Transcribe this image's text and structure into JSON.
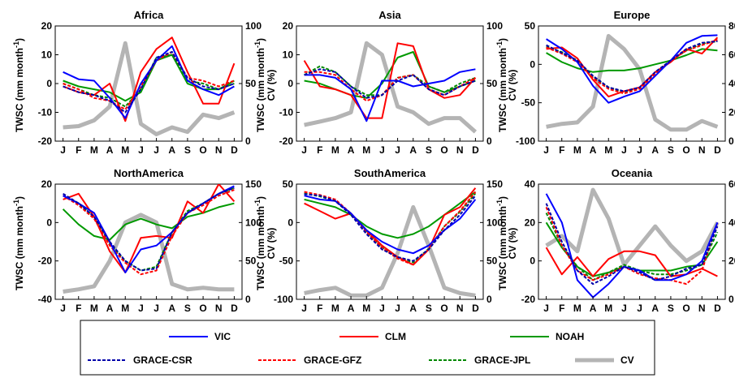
{
  "chart_data": {
    "type": "line",
    "x": [
      "J",
      "F",
      "M",
      "A",
      "M",
      "J",
      "J",
      "A",
      "S",
      "O",
      "N",
      "D"
    ],
    "xlabel": "",
    "ylabel_left": "TWSC (mm month-1)",
    "ylabel_right": "CV (%)",
    "series_styles": [
      {
        "name": "VIC",
        "color": "#0000ff",
        "dash": false,
        "width": 2
      },
      {
        "name": "CLM",
        "color": "#ff0000",
        "dash": false,
        "width": 2
      },
      {
        "name": "NOAH",
        "color": "#009900",
        "dash": false,
        "width": 2
      },
      {
        "name": "GRACE-CSR",
        "color": "#0000aa",
        "dash": true,
        "width": 2
      },
      {
        "name": "GRACE-GFZ",
        "color": "#ff0000",
        "dash": true,
        "width": 2
      },
      {
        "name": "GRACE-JPL",
        "color": "#008800",
        "dash": true,
        "width": 2
      },
      {
        "name": "CV",
        "color": "#b4b4b4",
        "dash": false,
        "width": 5,
        "axis": "right"
      }
    ],
    "panels": [
      {
        "title": "Africa",
        "ylim": [
          -20,
          20
        ],
        "yticks": [
          -20,
          -10,
          0,
          10,
          20
        ],
        "y2lim": [
          0,
          100
        ],
        "y2ticks": [
          0,
          50,
          100
        ],
        "series": [
          {
            "name": "VIC",
            "values": [
              4,
              1.5,
              1,
              -5,
              -12,
              0,
              8,
              13,
              1,
              -2,
              -4,
              -1
            ]
          },
          {
            "name": "CLM",
            "values": [
              -1,
              -3,
              -4,
              0,
              -13,
              4,
              12,
              16,
              4,
              -7,
              -7,
              7
            ]
          },
          {
            "name": "NOAH",
            "values": [
              1,
              -1,
              -2,
              -3,
              -6,
              -3,
              8,
              10,
              0,
              -2,
              -2,
              1
            ]
          },
          {
            "name": "GRACE-CSR",
            "values": [
              -1,
              -3,
              -4,
              -6,
              -10,
              -2,
              9,
              11,
              2,
              -1,
              -2,
              0
            ]
          },
          {
            "name": "GRACE-GFZ",
            "values": [
              0,
              -2,
              -5,
              -6,
              -9,
              -1,
              8,
              11,
              2,
              1,
              -1,
              1
            ]
          },
          {
            "name": "GRACE-JPL",
            "values": [
              0,
              -2,
              -4,
              -5,
              -8,
              -2,
              9,
              10,
              1,
              0,
              -2,
              0
            ]
          },
          {
            "name": "CV",
            "values": [
              12,
              13,
              18,
              30,
              85,
              15,
              6,
              12,
              8,
              23,
              20,
              25
            ]
          }
        ]
      },
      {
        "title": "Asia",
        "ylim": [
          -20,
          20
        ],
        "yticks": [
          -20,
          -10,
          0,
          10,
          20
        ],
        "y2lim": [
          0,
          100
        ],
        "y2ticks": [
          0,
          50,
          100
        ],
        "series": [
          {
            "name": "VIC",
            "values": [
              3,
              3,
              2,
              -2,
              -13,
              1,
              1,
              -1,
              0,
              1,
              4,
              5
            ]
          },
          {
            "name": "CLM",
            "values": [
              8,
              -1,
              -2,
              -4,
              -12,
              -12,
              14,
              13,
              -2,
              -5,
              -4,
              2
            ]
          },
          {
            "name": "NOAH",
            "values": [
              1,
              0,
              -2,
              -4,
              -5,
              0,
              9,
              11,
              -1,
              -3,
              -1,
              1
            ]
          },
          {
            "name": "GRACE-CSR",
            "values": [
              3,
              5,
              4,
              -1,
              -5,
              -4,
              1,
              3,
              -2,
              -4,
              -1,
              1
            ]
          },
          {
            "name": "GRACE-GFZ",
            "values": [
              4,
              4,
              3,
              -2,
              -6,
              -4,
              2,
              3,
              -2,
              -4,
              -1,
              2
            ]
          },
          {
            "name": "GRACE-JPL",
            "values": [
              3,
              6,
              4,
              -1,
              -4,
              -4,
              2,
              3,
              -1,
              -3,
              0,
              2
            ]
          },
          {
            "name": "CV",
            "values": [
              14,
              17,
              20,
              25,
              85,
              75,
              30,
              25,
              15,
              20,
              20,
              8
            ]
          }
        ]
      },
      {
        "title": "Europe",
        "ylim": [
          -100,
          50
        ],
        "yticks": [
          -100,
          -50,
          0,
          50
        ],
        "y2lim": [
          0,
          80
        ],
        "y2ticks": [
          0,
          20,
          40,
          60,
          80
        ],
        "series": [
          {
            "name": "VIC",
            "values": [
              33,
              20,
              3,
              -28,
              -50,
              -42,
              -35,
              -15,
              5,
              28,
              37,
              38
            ]
          },
          {
            "name": "CLM",
            "values": [
              20,
              22,
              8,
              -20,
              -42,
              -35,
              -30,
              -10,
              3,
              20,
              14,
              35
            ]
          },
          {
            "name": "NOAH",
            "values": [
              15,
              3,
              -5,
              -10,
              -8,
              -8,
              -5,
              0,
              5,
              12,
              20,
              18
            ]
          },
          {
            "name": "GRACE-CSR",
            "values": [
              25,
              15,
              5,
              -15,
              -30,
              -35,
              -30,
              -10,
              5,
              20,
              28,
              30
            ]
          },
          {
            "name": "GRACE-GFZ",
            "values": [
              22,
              14,
              3,
              -18,
              -32,
              -38,
              -32,
              -12,
              5,
              18,
              25,
              32
            ]
          },
          {
            "name": "GRACE-JPL",
            "values": [
              23,
              16,
              5,
              -16,
              -30,
              -36,
              -30,
              -10,
              5,
              18,
              27,
              30
            ]
          },
          {
            "name": "CV",
            "values": [
              10,
              12,
              13,
              24,
              73,
              64,
              50,
              15,
              8,
              8,
              14,
              10
            ]
          }
        ]
      },
      {
        "title": "NorthAmerica",
        "ylim": [
          -40,
          20
        ],
        "yticks": [
          -40,
          -20,
          0,
          20
        ],
        "y2lim": [
          0,
          150
        ],
        "y2ticks": [
          0,
          50,
          100,
          150
        ],
        "series": [
          {
            "name": "VIC",
            "values": [
              14,
              10,
              5,
              -10,
              -26,
              -14,
              -12,
              -5,
              5,
              10,
              15,
              19
            ]
          },
          {
            "name": "CLM",
            "values": [
              12,
              15,
              3,
              -15,
              -26,
              -8,
              -7,
              -8,
              11,
              5,
              20,
              11
            ]
          },
          {
            "name": "NOAH",
            "values": [
              7,
              -1,
              -7,
              -9,
              -1,
              2,
              -1,
              -3,
              3,
              5,
              8,
              10
            ]
          },
          {
            "name": "GRACE-CSR",
            "values": [
              15,
              10,
              3,
              -10,
              -20,
              -25,
              -24,
              -5,
              5,
              10,
              15,
              18
            ]
          },
          {
            "name": "GRACE-GFZ",
            "values": [
              14,
              9,
              2,
              -12,
              -21,
              -27,
              -25,
              -7,
              5,
              9,
              14,
              17
            ]
          },
          {
            "name": "GRACE-JPL",
            "values": [
              14,
              10,
              3,
              -11,
              -20,
              -25,
              -23,
              -5,
              6,
              10,
              15,
              18
            ]
          },
          {
            "name": "CV",
            "values": [
              10,
              13,
              17,
              50,
              100,
              110,
              100,
              20,
              13,
              15,
              13,
              13
            ]
          }
        ]
      },
      {
        "title": "SouthAmerica",
        "ylim": [
          -100,
          50
        ],
        "yticks": [
          -100,
          -50,
          0,
          50
        ],
        "y2lim": [
          0,
          150
        ],
        "y2ticks": [
          0,
          50,
          100,
          150
        ],
        "series": [
          {
            "name": "VIC",
            "values": [
              35,
              30,
              28,
              12,
              -10,
              -25,
              -35,
              -40,
              -30,
              -10,
              5,
              30
            ]
          },
          {
            "name": "CLM",
            "values": [
              25,
              15,
              5,
              12,
              -10,
              -30,
              -45,
              -55,
              -35,
              10,
              20,
              45
            ]
          },
          {
            "name": "NOAH",
            "values": [
              30,
              25,
              20,
              10,
              -5,
              -15,
              -20,
              -15,
              -5,
              10,
              25,
              40
            ]
          },
          {
            "name": "GRACE-CSR",
            "values": [
              37,
              35,
              28,
              10,
              -15,
              -35,
              -45,
              -50,
              -35,
              -10,
              10,
              35
            ]
          },
          {
            "name": "GRACE-GFZ",
            "values": [
              40,
              36,
              30,
              12,
              -12,
              -33,
              -47,
              -55,
              -35,
              -5,
              15,
              40
            ]
          },
          {
            "name": "GRACE-JPL",
            "values": [
              38,
              34,
              28,
              12,
              -12,
              -32,
              -45,
              -52,
              -34,
              -5,
              14,
              38
            ]
          },
          {
            "name": "CV",
            "values": [
              8,
              12,
              15,
              5,
              5,
              15,
              60,
              120,
              70,
              15,
              8,
              5
            ]
          }
        ]
      },
      {
        "title": "Oceania",
        "ylim": [
          -20,
          40
        ],
        "yticks": [
          -20,
          0,
          20,
          40
        ],
        "y2lim": [
          0,
          60
        ],
        "y2ticks": [
          0,
          20,
          40,
          60
        ],
        "series": [
          {
            "name": "VIC",
            "values": [
              35,
              20,
              -10,
              -19,
              -12,
              -3,
              -5,
              -10,
              -10,
              -7,
              0,
              20
            ]
          },
          {
            "name": "CLM",
            "values": [
              7,
              -7,
              2,
              -8,
              1,
              5,
              5,
              3,
              -8,
              -7,
              -4,
              -8
            ]
          },
          {
            "name": "NOAH",
            "values": [
              20,
              7,
              -3,
              -8,
              -6,
              -3,
              -5,
              -5,
              -5,
              -3,
              -2,
              10
            ]
          },
          {
            "name": "GRACE-CSR",
            "values": [
              30,
              10,
              -5,
              -12,
              -8,
              -3,
              -6,
              -10,
              -8,
              -4,
              -2,
              18
            ]
          },
          {
            "name": "GRACE-GFZ",
            "values": [
              28,
              8,
              -5,
              -10,
              -7,
              -3,
              -7,
              -9,
              -10,
              -12,
              -5,
              20
            ]
          },
          {
            "name": "GRACE-JPL",
            "values": [
              25,
              8,
              -3,
              -10,
              -6,
              -2,
              -5,
              -7,
              -7,
              -5,
              -2,
              15
            ]
          },
          {
            "name": "CV",
            "values": [
              28,
              33,
              25,
              57,
              42,
              18,
              28,
              38,
              28,
              20,
              25,
              40
            ]
          }
        ]
      }
    ],
    "legend": {
      "placement": "bottom",
      "row1": [
        "VIC",
        "CLM",
        "NOAH"
      ],
      "row2": [
        "GRACE-CSR",
        "GRACE-GFZ",
        "GRACE-JPL",
        "CV"
      ]
    }
  }
}
